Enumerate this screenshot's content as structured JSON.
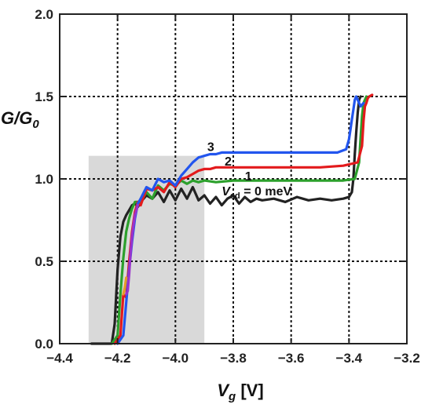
{
  "chart_data": {
    "type": "line",
    "xlabel_main": "V",
    "xlabel_sub": "g",
    "xlabel_unit": " [V]",
    "ylabel_main": "G/G",
    "ylabel_sub": "0",
    "xlim": [
      -4.4,
      -3.2
    ],
    "ylim": [
      0.0,
      2.0
    ],
    "xticks": [
      -4.4,
      -4.2,
      -4.0,
      -3.8,
      -3.6,
      -3.4,
      -3.2
    ],
    "xtick_labels": [
      "−4.4",
      "−4.2",
      "−4.0",
      "−3.8",
      "−3.6",
      "−3.4",
      "−3.2"
    ],
    "yticks": [
      0.0,
      0.5,
      1.0,
      1.5,
      2.0
    ],
    "ytick_labels": [
      "0.0",
      "0.5",
      "1.0",
      "1.5",
      "2.0"
    ],
    "grid": true,
    "highlight_region": {
      "x": [
        -4.3,
        -3.9
      ],
      "y": [
        0.0,
        1.14
      ],
      "color": "#d9d9d9"
    },
    "series": [
      {
        "name": "V_sd = 0 meV",
        "color": "#222222",
        "x": [
          -4.29,
          -4.22,
          -4.21,
          -4.2,
          -4.19,
          -4.18,
          -4.17,
          -4.16,
          -4.15,
          -4.14,
          -4.13,
          -4.12,
          -4.1,
          -4.08,
          -4.06,
          -4.04,
          -4.02,
          -4.0,
          -3.98,
          -3.96,
          -3.94,
          -3.92,
          -3.9,
          -3.88,
          -3.86,
          -3.84,
          -3.82,
          -3.8,
          -3.78,
          -3.76,
          -3.74,
          -3.72,
          -3.7,
          -3.66,
          -3.62,
          -3.58,
          -3.54,
          -3.5,
          -3.46,
          -3.42,
          -3.4,
          -3.39,
          -3.385,
          -3.38,
          -3.375,
          -3.37,
          -3.365,
          -3.36
        ],
        "y": [
          0.0,
          0.0,
          0.12,
          0.45,
          0.65,
          0.74,
          0.78,
          0.81,
          0.84,
          0.85,
          0.83,
          0.86,
          0.9,
          0.88,
          0.92,
          0.86,
          0.93,
          0.87,
          0.94,
          0.88,
          0.95,
          0.87,
          0.9,
          0.85,
          0.89,
          0.84,
          0.88,
          0.9,
          0.85,
          0.89,
          0.86,
          0.88,
          0.87,
          0.88,
          0.86,
          0.89,
          0.87,
          0.88,
          0.87,
          0.88,
          0.89,
          0.92,
          1.0,
          1.15,
          1.28,
          1.4,
          1.48,
          1.5
        ]
      },
      {
        "name": "1",
        "color": "#2ca02c",
        "x": [
          -4.22,
          -4.2,
          -4.19,
          -4.18,
          -4.17,
          -4.16,
          -4.15,
          -4.14,
          -4.12,
          -4.1,
          -4.08,
          -4.06,
          -4.04,
          -4.02,
          -4.0,
          -3.98,
          -3.96,
          -3.94,
          -3.92,
          -3.9,
          -3.86,
          -3.8,
          -3.7,
          -3.6,
          -3.5,
          -3.42,
          -3.38,
          -3.365,
          -3.36,
          -3.355,
          -3.35,
          -3.345,
          -3.34
        ],
        "y": [
          0.0,
          0.05,
          0.3,
          0.52,
          0.68,
          0.76,
          0.82,
          0.86,
          0.86,
          0.92,
          0.88,
          0.96,
          0.93,
          0.97,
          0.96,
          0.99,
          0.97,
          0.99,
          0.98,
          0.99,
          0.98,
          0.99,
          0.99,
          0.99,
          0.99,
          0.99,
          1.0,
          1.1,
          1.25,
          1.38,
          1.46,
          1.48,
          1.5
        ]
      },
      {
        "name": "2",
        "color": "#e31a1c",
        "x": [
          -4.21,
          -4.19,
          -4.18,
          -4.17,
          -4.16,
          -4.15,
          -4.14,
          -4.13,
          -4.12,
          -4.1,
          -4.08,
          -4.06,
          -4.04,
          -4.02,
          -4.0,
          -3.98,
          -3.96,
          -3.94,
          -3.92,
          -3.9,
          -3.88,
          -3.86,
          -3.8,
          -3.7,
          -3.6,
          -3.5,
          -3.42,
          -3.37,
          -3.355,
          -3.35,
          -3.345,
          -3.34,
          -3.335,
          -3.33,
          -3.32
        ],
        "y": [
          0.0,
          0.05,
          0.3,
          0.28,
          0.5,
          0.68,
          0.8,
          0.86,
          0.84,
          0.94,
          0.93,
          0.95,
          0.92,
          0.98,
          0.95,
          1.0,
          1.01,
          1.03,
          1.05,
          1.06,
          1.06,
          1.07,
          1.07,
          1.07,
          1.07,
          1.07,
          1.08,
          1.1,
          1.2,
          1.35,
          1.44,
          1.46,
          1.49,
          1.5,
          1.51
        ]
      },
      {
        "name": "3",
        "color": "#2255ee",
        "x": [
          -4.2,
          -4.18,
          -4.17,
          -4.16,
          -4.15,
          -4.14,
          -4.13,
          -4.12,
          -4.1,
          -4.08,
          -4.06,
          -4.04,
          -4.02,
          -4.0,
          -3.98,
          -3.96,
          -3.94,
          -3.92,
          -3.9,
          -3.88,
          -3.86,
          -3.84,
          -3.8,
          -3.7,
          -3.6,
          -3.5,
          -3.44,
          -3.41,
          -3.4,
          -3.395,
          -3.39,
          -3.385,
          -3.38,
          -3.375,
          -3.37,
          -3.365,
          -3.36,
          -3.355,
          -3.35
        ],
        "y": [
          0.0,
          0.05,
          0.25,
          0.45,
          0.62,
          0.76,
          0.85,
          0.88,
          0.95,
          0.93,
          1.0,
          0.98,
          0.99,
          0.96,
          1.02,
          1.06,
          1.1,
          1.13,
          1.14,
          1.15,
          1.15,
          1.16,
          1.16,
          1.16,
          1.16,
          1.16,
          1.16,
          1.18,
          1.24,
          1.3,
          1.36,
          1.42,
          1.48,
          1.5,
          1.48,
          1.46,
          1.44,
          1.45,
          1.46
        ]
      },
      {
        "name": "",
        "color": "#9933cc",
        "x": [
          -4.17,
          -4.165,
          -4.16,
          -4.155,
          -4.15,
          -4.145,
          -4.14,
          -4.13
        ],
        "y": [
          0.3,
          0.32,
          0.42,
          0.55,
          0.65,
          0.72,
          0.78,
          0.84
        ]
      },
      {
        "name": "",
        "color": "#e69a28",
        "x": [
          -4.18,
          -4.175,
          -4.17
        ],
        "y": [
          0.3,
          0.34,
          0.4
        ]
      }
    ],
    "annotations": [
      {
        "id": "label-3",
        "text": "3",
        "x": -3.89,
        "y": 1.17,
        "color": "#111"
      },
      {
        "id": "label-2",
        "text": "2",
        "x": -3.83,
        "y": 1.08,
        "color": "#111"
      },
      {
        "id": "label-1",
        "text": "1",
        "x": -3.76,
        "y": 0.99,
        "color": "#111"
      },
      {
        "id": "label-vsd",
        "main": "V",
        "sub": "sd",
        "rest": " = 0 meV",
        "x": -3.84,
        "y": 0.9,
        "color": "#111"
      }
    ]
  }
}
